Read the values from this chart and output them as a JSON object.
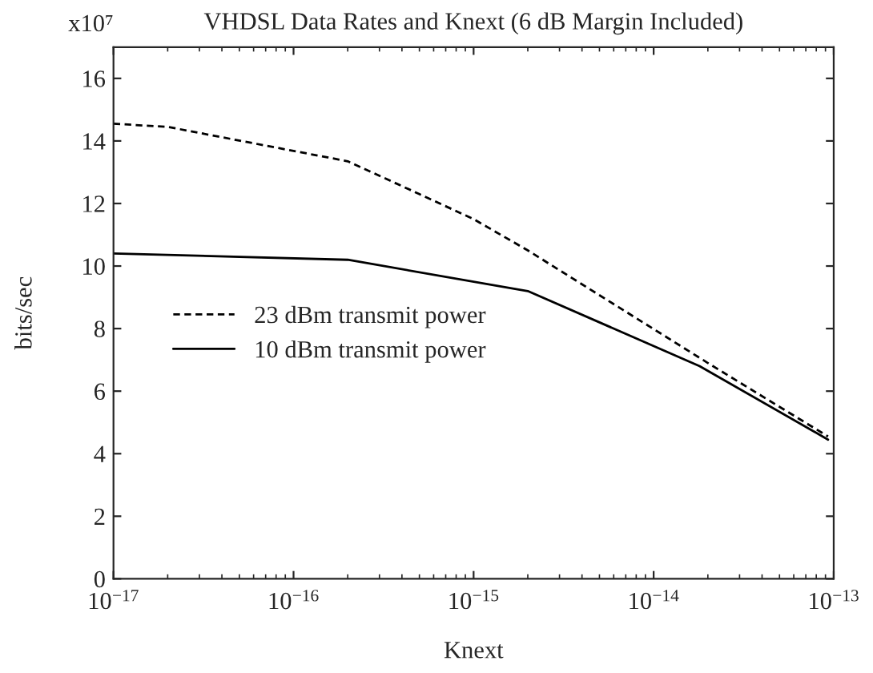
{
  "chart_data": {
    "type": "line",
    "title": "VHDSL Data Rates and Knext (6 dB Margin Included)",
    "xlabel": "Knext",
    "ylabel": "bits/sec",
    "annotations": [
      "x10⁷"
    ],
    "log": "x",
    "xlim": [
      1e-17,
      1e-13
    ],
    "xticks": [
      {
        "value": 1e-17,
        "label": "10$^{−17}$"
      },
      {
        "value": 1e-16,
        "label": "10$^{−16}$"
      },
      {
        "value": 1e-15,
        "label": "10$^{−15}$"
      },
      {
        "value": 1e-14,
        "label": "10$^{−14}$"
      },
      {
        "value": 1e-13,
        "label": "10$^{−13}$"
      }
    ],
    "ylim": [
      0,
      17
    ],
    "yticks": [
      0,
      2,
      4,
      6,
      8,
      10,
      12,
      14,
      16
    ],
    "grid": false,
    "legend": "center",
    "series": [
      {
        "name": "23 dBm transmit power",
        "color": "#000000",
        "line_style": "dashed",
        "x": [
          1e-17,
          2e-17,
          2e-16,
          5e-16,
          1e-15,
          2e-15,
          2e-14,
          9.3e-14
        ],
        "values": [
          14.55,
          14.45,
          13.35,
          12.3,
          11.5,
          10.5,
          6.9,
          4.55
        ]
      },
      {
        "name": "10 dBm transmit power",
        "color": "#000000",
        "line_style": "solid",
        "x": [
          1e-17,
          2e-16,
          2e-15,
          1.8e-14,
          9.3e-14
        ],
        "values": [
          10.4,
          10.2,
          9.2,
          6.8,
          4.45
        ]
      }
    ]
  }
}
